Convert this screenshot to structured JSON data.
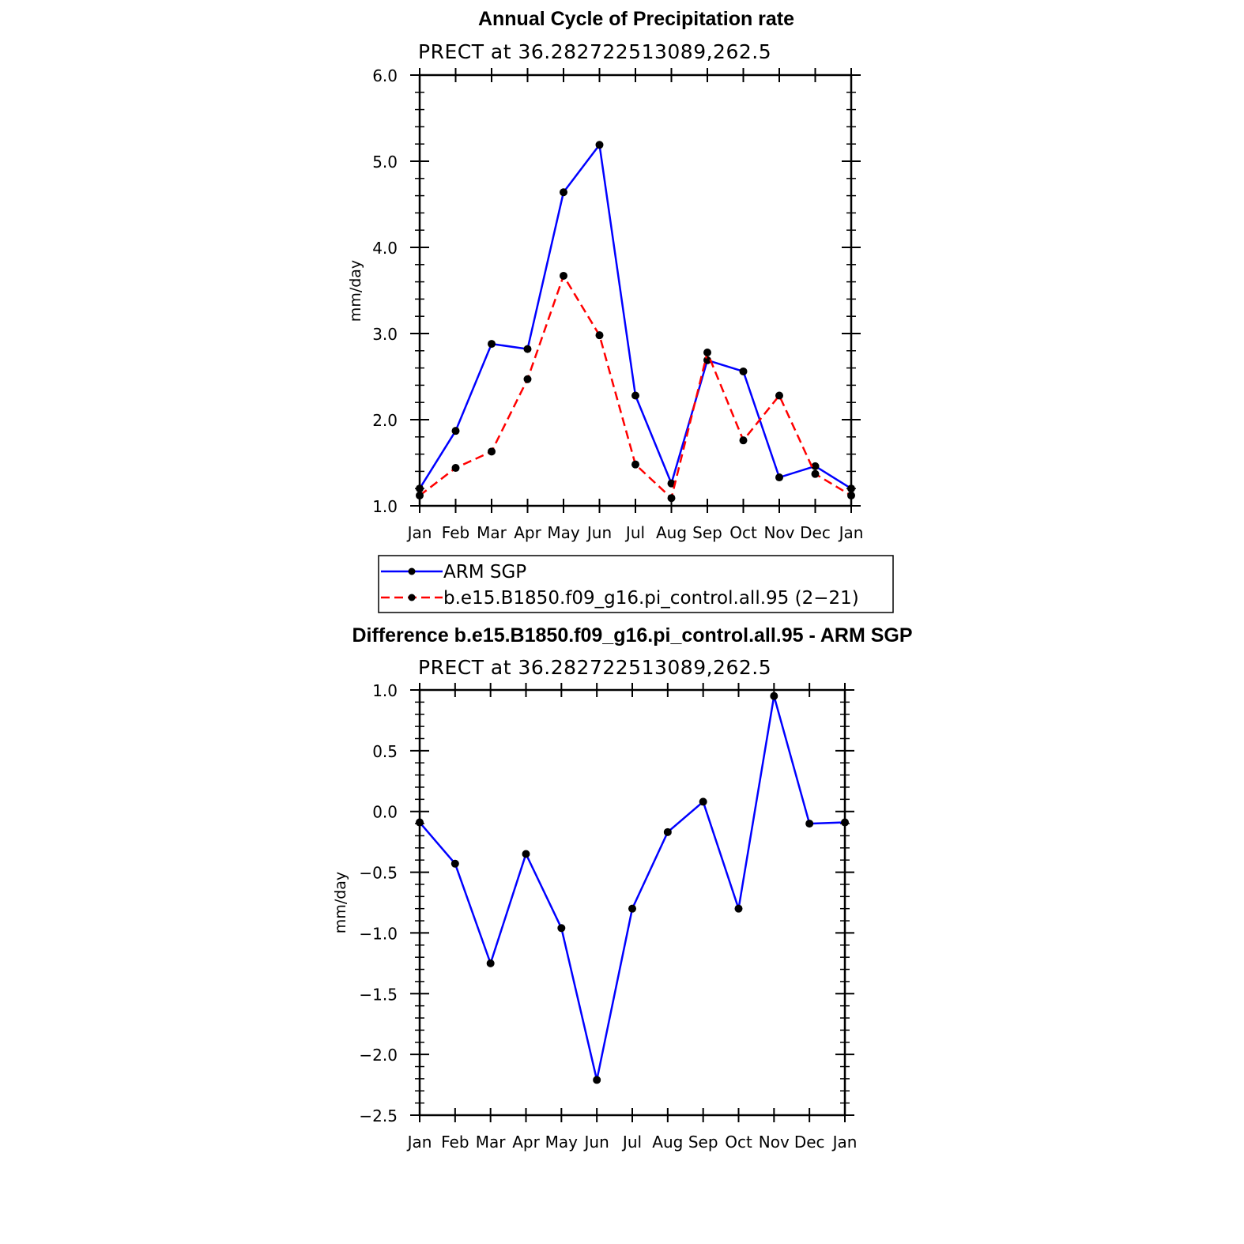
{
  "colors": {
    "series_obs": "#0000ff",
    "series_model": "#ff0000",
    "marker": "#000000",
    "axis": "#000000"
  },
  "chart_data": [
    {
      "type": "line",
      "title": "Annual Cycle of Precipitation rate",
      "subtitle": "PRECT at 36.282722513089,262.5",
      "ylabel": "mm/day",
      "xlabel": "",
      "categories": [
        "Jan",
        "Feb",
        "Mar",
        "Apr",
        "May",
        "Jun",
        "Jul",
        "Aug",
        "Sep",
        "Oct",
        "Nov",
        "Dec",
        "Jan"
      ],
      "ylim": [
        1.0,
        6.0
      ],
      "yticks": [
        "1.0",
        "2.0",
        "3.0",
        "4.0",
        "5.0",
        "6.0"
      ],
      "ytick_values": [
        1.0,
        2.0,
        3.0,
        4.0,
        5.0,
        6.0
      ],
      "grid": false,
      "legend_position": "bottom",
      "series": [
        {
          "name": "ARM SGP",
          "style": "solid",
          "color": "#0000ff",
          "values": [
            1.2,
            1.87,
            2.88,
            2.82,
            4.64,
            5.19,
            2.28,
            1.26,
            2.69,
            2.56,
            1.33,
            1.46,
            1.2
          ]
        },
        {
          "name": "b.e15.B1850.f09_g16.pi_control.all.95 (2−21)",
          "style": "dashed",
          "color": "#ff0000",
          "values": [
            1.12,
            1.44,
            1.63,
            2.47,
            3.67,
            2.98,
            1.48,
            1.09,
            2.78,
            1.76,
            2.28,
            1.37,
            1.12
          ]
        }
      ]
    },
    {
      "type": "line",
      "title": "Difference b.e15.B1850.f09_g16.pi_control.all.95 - ARM SGP",
      "subtitle": "PRECT at 36.282722513089,262.5",
      "ylabel": "mm/day",
      "xlabel": "",
      "categories": [
        "Jan",
        "Feb",
        "Mar",
        "Apr",
        "May",
        "Jun",
        "Jul",
        "Aug",
        "Sep",
        "Oct",
        "Nov",
        "Dec",
        "Jan"
      ],
      "ylim": [
        -2.5,
        1.0
      ],
      "yticks": [
        "−2.5",
        "−2.0",
        "−1.5",
        "−1.0",
        "−0.5",
        "0.0",
        "0.5",
        "1.0"
      ],
      "ytick_values": [
        -2.5,
        -2.0,
        -1.5,
        -1.0,
        -0.5,
        0.0,
        0.5,
        1.0
      ],
      "grid": false,
      "series": [
        {
          "name": "",
          "style": "solid",
          "color": "#0000ff",
          "values": [
            -0.09,
            -0.43,
            -1.25,
            -0.35,
            -0.96,
            -2.21,
            -0.8,
            -0.17,
            0.08,
            -0.8,
            0.95,
            -0.1,
            -0.09
          ]
        }
      ]
    }
  ]
}
